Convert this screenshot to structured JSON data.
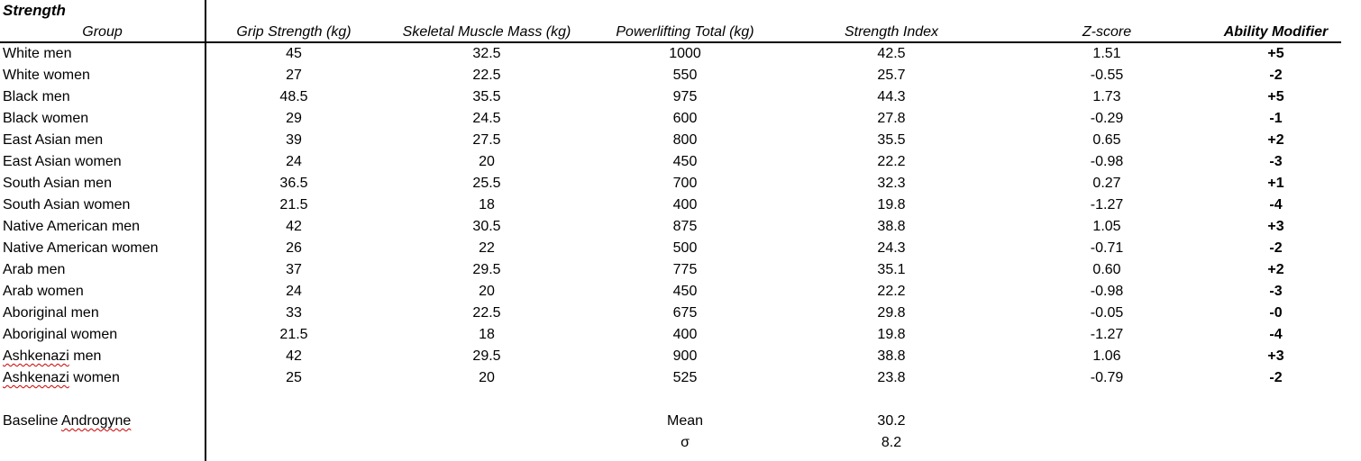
{
  "sheet": {
    "title": "Strength",
    "columns": [
      "Group",
      "Grip Strength (kg)",
      "Skeletal Muscle Mass (kg)",
      "Powerlifting Total (kg)",
      "Strength Index",
      "Z-score",
      "Ability Modifier"
    ],
    "rows": [
      {
        "group": "White men",
        "grip_strength_kg": "45",
        "muscle_mass_kg": "32.5",
        "powerlifting_total_kg": "1000",
        "strength_index": "42.5",
        "z_score": "1.51",
        "ability_modifier": "+5"
      },
      {
        "group": "White women",
        "grip_strength_kg": "27",
        "muscle_mass_kg": "22.5",
        "powerlifting_total_kg": "550",
        "strength_index": "25.7",
        "z_score": "-0.55",
        "ability_modifier": "-2"
      },
      {
        "group": "Black men",
        "grip_strength_kg": "48.5",
        "muscle_mass_kg": "35.5",
        "powerlifting_total_kg": "975",
        "strength_index": "44.3",
        "z_score": "1.73",
        "ability_modifier": "+5"
      },
      {
        "group": "Black women",
        "grip_strength_kg": "29",
        "muscle_mass_kg": "24.5",
        "powerlifting_total_kg": "600",
        "strength_index": "27.8",
        "z_score": "-0.29",
        "ability_modifier": "-1"
      },
      {
        "group": "East Asian men",
        "grip_strength_kg": "39",
        "muscle_mass_kg": "27.5",
        "powerlifting_total_kg": "800",
        "strength_index": "35.5",
        "z_score": "0.65",
        "ability_modifier": "+2"
      },
      {
        "group": "East Asian women",
        "grip_strength_kg": "24",
        "muscle_mass_kg": "20",
        "powerlifting_total_kg": "450",
        "strength_index": "22.2",
        "z_score": "-0.98",
        "ability_modifier": "-3"
      },
      {
        "group": "South Asian men",
        "grip_strength_kg": "36.5",
        "muscle_mass_kg": "25.5",
        "powerlifting_total_kg": "700",
        "strength_index": "32.3",
        "z_score": "0.27",
        "ability_modifier": "+1"
      },
      {
        "group": "South Asian women",
        "grip_strength_kg": "21.5",
        "muscle_mass_kg": "18",
        "powerlifting_total_kg": "400",
        "strength_index": "19.8",
        "z_score": "-1.27",
        "ability_modifier": "-4"
      },
      {
        "group": "Native American men",
        "grip_strength_kg": "42",
        "muscle_mass_kg": "30.5",
        "powerlifting_total_kg": "875",
        "strength_index": "38.8",
        "z_score": "1.05",
        "ability_modifier": "+3"
      },
      {
        "group": "Native American women",
        "grip_strength_kg": "26",
        "muscle_mass_kg": "22",
        "powerlifting_total_kg": "500",
        "strength_index": "24.3",
        "z_score": "-0.71",
        "ability_modifier": "-2"
      },
      {
        "group": "Arab men",
        "grip_strength_kg": "37",
        "muscle_mass_kg": "29.5",
        "powerlifting_total_kg": "775",
        "strength_index": "35.1",
        "z_score": "0.60",
        "ability_modifier": "+2"
      },
      {
        "group": "Arab women",
        "grip_strength_kg": "24",
        "muscle_mass_kg": "20",
        "powerlifting_total_kg": "450",
        "strength_index": "22.2",
        "z_score": "-0.98",
        "ability_modifier": "-3"
      },
      {
        "group": "Aboriginal men",
        "grip_strength_kg": "33",
        "muscle_mass_kg": "22.5",
        "powerlifting_total_kg": "675",
        "strength_index": "29.8",
        "z_score": "-0.05",
        "ability_modifier": "-0"
      },
      {
        "group": "Aboriginal women",
        "grip_strength_kg": "21.5",
        "muscle_mass_kg": "18",
        "powerlifting_total_kg": "400",
        "strength_index": "19.8",
        "z_score": "-1.27",
        "ability_modifier": "-4"
      },
      {
        "group": "Ashkenazi men",
        "grip_strength_kg": "42",
        "muscle_mass_kg": "29.5",
        "powerlifting_total_kg": "900",
        "strength_index": "38.8",
        "z_score": "1.06",
        "ability_modifier": "+3"
      },
      {
        "group": "Ashkenazi women",
        "grip_strength_kg": "25",
        "muscle_mass_kg": "20",
        "powerlifting_total_kg": "525",
        "strength_index": "23.8",
        "z_score": "-0.79",
        "ability_modifier": "-2"
      }
    ],
    "footer": {
      "baseline_label": "Baseline Androgyne",
      "mean_label": "Mean",
      "mean_value": "30.2",
      "sigma_label": "σ",
      "sigma_value": "8.2"
    },
    "spellcheck": {
      "flagged_words": [
        "Ashkenazi",
        "Androgyne"
      ],
      "color": "#cc0000"
    },
    "colors": {
      "text": "#000000",
      "background": "#ffffff",
      "gridline": "#000000"
    }
  }
}
